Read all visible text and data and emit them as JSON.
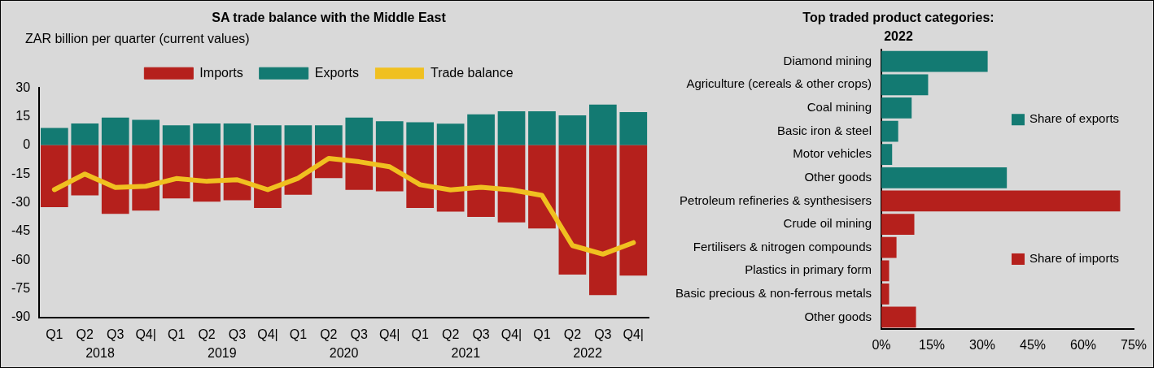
{
  "chart_data": [
    {
      "type": "bar",
      "title": "SA trade balance with the Middle East",
      "ylabel": "ZAR billion  per quarter (current values)",
      "categories": [
        "Q1",
        "Q2",
        "Q3",
        "Q4|",
        "Q1",
        "Q2",
        "Q3",
        "Q4|",
        "Q1",
        "Q2",
        "Q3",
        "Q4|",
        "Q1",
        "Q2",
        "Q3",
        "Q4|",
        "Q1",
        "Q2",
        "Q3",
        "Q4|"
      ],
      "annotations": [
        "2018",
        "2019",
        "2020",
        "2021",
        "2022"
      ],
      "series": [
        {
          "name": "Imports",
          "color": "#b5201c",
          "values": [
            -32.3,
            -26.2,
            -35.8,
            -34.1,
            -27.8,
            -29.5,
            -28.7,
            -32.8,
            -25.9,
            -17.2,
            -23.3,
            -24.1,
            -32.8,
            -34.7,
            -37.4,
            -40.3,
            -43.5,
            -67.6,
            -78.3,
            -68.1
          ]
        },
        {
          "name": "Exports",
          "color": "#137a72",
          "values": [
            9.1,
            11.4,
            14.5,
            13.3,
            10.4,
            11.4,
            11.4,
            10.4,
            10.4,
            10.4,
            14.5,
            12.6,
            12,
            11.3,
            16.2,
            17.8,
            17.8,
            15.6,
            21.3,
            17.3
          ]
        },
        {
          "name": "Trade balance",
          "type": "line",
          "color": "#f0c020",
          "values": [
            -23.2,
            -15,
            -22,
            -21.4,
            -17.4,
            -18.8,
            -18,
            -23.2,
            -17.2,
            -6.9,
            -8.6,
            -11.2,
            -20.6,
            -23.3,
            -21.9,
            -23.3,
            -26.2,
            -52.4,
            -56.9,
            -50.9
          ]
        }
      ],
      "ylim": [
        -90,
        30
      ],
      "yticks": [
        -90,
        -75,
        -60,
        -45,
        -30,
        -15,
        0,
        15,
        30
      ],
      "grid": false,
      "legend": "top",
      "marker": "none",
      "stacked": true
    },
    {
      "type": "bar",
      "orientation": "horizontal",
      "title": "Top traded product categories:",
      "subtitle": "2022",
      "categories": [
        "Diamond mining",
        "Agriculture (cereals & other crops)",
        "Coal mining",
        "Basic iron & steel",
        "Motor vehicles",
        "Other goods",
        "Petroleum refineries & synthesisers",
        "Crude oil mining",
        "Fertilisers & nitrogen compounds",
        "Plastics in primary form",
        "Basic precious & non-ferrous metals",
        "Other goods"
      ],
      "series": [
        {
          "name": "Share of exports",
          "color": "#137a72",
          "values": [
            31.6,
            13.9,
            9,
            5,
            3.2,
            37.3,
            null,
            null,
            null,
            null,
            null,
            null
          ]
        },
        {
          "name": "Share of imports",
          "color": "#b5201c",
          "values": [
            null,
            null,
            null,
            null,
            null,
            null,
            71,
            9.8,
            4.5,
            2.3,
            2.3,
            10.3
          ]
        }
      ],
      "xlim": [
        0,
        75
      ],
      "xticks": [
        {
          "value": 0,
          "label": "0%"
        },
        {
          "value": 15,
          "label": "15%"
        },
        {
          "value": 30,
          "label": "30%"
        },
        {
          "value": 45,
          "label": "45%"
        },
        {
          "value": 60,
          "label": "60%"
        },
        {
          "value": 75,
          "label": "75%"
        }
      ],
      "grid": false,
      "legend": "right"
    }
  ]
}
